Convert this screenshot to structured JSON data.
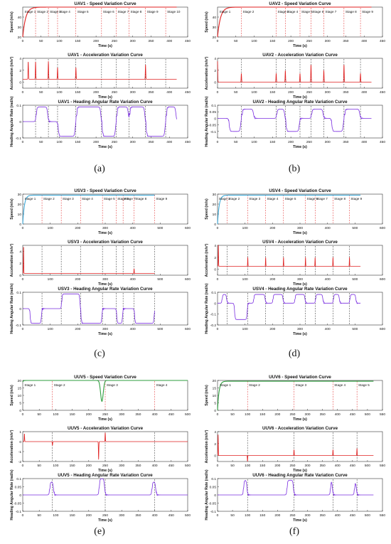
{
  "colors": {
    "uav": "#e02020",
    "usv": "#3fa9d8",
    "uuv": "#2e9e3e",
    "accel": "#e02020",
    "heading": "#7a2ee0",
    "stage_red": "#e02020",
    "stage_black": "#222222"
  },
  "chart_data": [
    {
      "id": "a",
      "type": "line",
      "caption": "(a)",
      "agent": "uav",
      "xlim": [
        0,
        450
      ],
      "xticks": [
        0,
        50,
        100,
        150,
        200,
        250,
        300,
        350,
        400,
        450
      ],
      "xlabel": "Time (s)",
      "end_t": 420,
      "stage_lines": [
        35,
        70,
        95,
        145,
        215,
        255,
        290,
        335,
        390
      ],
      "stage_labels": [
        {
          "t": 3,
          "text": "Stage 1"
        },
        {
          "t": 37,
          "text": "Stage 2"
        },
        {
          "t": 72,
          "text": "Stage 3"
        },
        {
          "t": 97,
          "text": "Stage 4"
        },
        {
          "t": 147,
          "text": "Stage 5"
        },
        {
          "t": 217,
          "text": "Stage 6"
        },
        {
          "t": 257,
          "text": "Stage 7"
        },
        {
          "t": 292,
          "text": "Stage 8"
        },
        {
          "t": 337,
          "text": "Stage 9"
        },
        {
          "t": 392,
          "text": "Stage 10"
        }
      ],
      "speed": {
        "title": "UAV1 - Speed Variation Curve",
        "ylabel": "Speed (m/s)",
        "ylim": [
          20,
          50
        ],
        "yticks": [
          20,
          30,
          40
        ],
        "v0": 20,
        "vmax": 50,
        "ramp": 8
      },
      "accel": {
        "title": "UAV1 - Acceleration Variation Curve",
        "ylabel": "Acceleration (m/s²)",
        "ylim": [
          -1,
          4
        ],
        "yticks": [
          0,
          2,
          4
        ],
        "base": 0.5,
        "spikes": [
          [
            15,
            3
          ],
          [
            35,
            3
          ],
          [
            70,
            3
          ],
          [
            95,
            2
          ],
          [
            145,
            2
          ],
          [
            335,
            2.5
          ]
        ]
      },
      "heading": {
        "title": "UAV1 - Heading Angular Rate Variation Curve",
        "ylabel": "Heading Angular Rate (rad/s)",
        "ylim": [
          -0.1,
          0.1
        ],
        "yticks": [
          -0.1,
          0,
          0.1
        ],
        "pulses": [
          [
            35,
            70,
            0.09
          ],
          [
            95,
            145,
            -0.09
          ],
          [
            145,
            215,
            0.09
          ],
          [
            215,
            255,
            -0.09
          ],
          [
            255,
            290,
            0.09
          ],
          [
            290,
            335,
            0.09
          ],
          [
            335,
            390,
            -0.09
          ],
          [
            390,
            420,
            0.09
          ]
        ]
      }
    },
    {
      "id": "b",
      "type": "line",
      "caption": "(b)",
      "agent": "uav",
      "xlim": [
        0,
        450
      ],
      "xticks": [
        0,
        50,
        100,
        150,
        200,
        250,
        300,
        350,
        400,
        450
      ],
      "xlabel": "Time (s)",
      "end_t": 420,
      "stage_lines": [
        65,
        160,
        185,
        225,
        255,
        290,
        345,
        390
      ],
      "stage_labels": [
        {
          "t": 3,
          "text": "Stage 1"
        },
        {
          "t": 67,
          "text": "Stage 2"
        },
        {
          "t": 162,
          "text": "Stage 3"
        },
        {
          "t": 187,
          "text": "Stage 4"
        },
        {
          "t": 227,
          "text": "Stage 5"
        },
        {
          "t": 257,
          "text": "Stage 6"
        },
        {
          "t": 292,
          "text": "Stage 7"
        },
        {
          "t": 347,
          "text": "Stage 8"
        },
        {
          "t": 392,
          "text": "Stage 9"
        }
      ],
      "speed": {
        "title": "UAV2 - Speed Variation Curve",
        "ylabel": "Speed (m/s)",
        "ylim": [
          20,
          50
        ],
        "yticks": [
          20,
          30,
          40
        ],
        "v0": 20,
        "vmax": 50,
        "ramp": 8
      },
      "accel": {
        "title": "UAV2 - Acceleration Variation Curve",
        "ylabel": "Acceleration (m/s²)",
        "ylim": [
          -1,
          4
        ],
        "yticks": [
          0,
          2,
          4
        ],
        "base": 0,
        "spikes": [
          [
            0,
            3.5
          ],
          [
            65,
            1.5
          ],
          [
            160,
            1.5
          ],
          [
            185,
            2
          ],
          [
            225,
            1.5
          ],
          [
            255,
            3
          ],
          [
            290,
            2
          ],
          [
            345,
            3
          ],
          [
            390,
            1.5
          ]
        ]
      },
      "heading": {
        "title": "UAV2 - Heading Angular Rate Variation Curve",
        "ylabel": "Heading Angular Rate (rad/s)",
        "ylim": [
          -0.15,
          0.1
        ],
        "yticks": [
          -0.1,
          -0.05,
          0,
          0.05,
          0.1
        ],
        "pulses": [
          [
            30,
            65,
            -0.1
          ],
          [
            65,
            100,
            0.07
          ],
          [
            160,
            185,
            0.07
          ],
          [
            185,
            225,
            -0.1
          ],
          [
            255,
            290,
            0.07
          ],
          [
            310,
            345,
            -0.1
          ],
          [
            345,
            390,
            0.07
          ]
        ]
      }
    },
    {
      "id": "c",
      "type": "line",
      "caption": "(c)",
      "agent": "usv",
      "xlim": [
        0,
        600
      ],
      "xticks": [
        0,
        100,
        200,
        300,
        400,
        500,
        600
      ],
      "xlabel": "Time (s)",
      "end_t": 480,
      "stage_lines": [
        70,
        140,
        210,
        290,
        340,
        365,
        405,
        480
      ],
      "stage_labels": [
        {
          "t": 4,
          "text": "Stage 1"
        },
        {
          "t": 72,
          "text": "Stage 2"
        },
        {
          "t": 142,
          "text": "Stage 3"
        },
        {
          "t": 212,
          "text": "Stage 4"
        },
        {
          "t": 292,
          "text": "Stage 5"
        },
        {
          "t": 342,
          "text": "Stage 6"
        },
        {
          "t": 367,
          "text": "Stage 7"
        },
        {
          "t": 407,
          "text": "Stage 8"
        },
        {
          "t": 482,
          "text": "Stage 9"
        }
      ],
      "speed": {
        "title": "USV3 - Speed Variation Curve",
        "ylabel": "Speed (m/s)",
        "ylim": [
          0,
          30
        ],
        "yticks": [
          0,
          10,
          20,
          30
        ],
        "v0": 0,
        "vmax": 29,
        "ramp": 6
      },
      "accel": {
        "title": "USV3 - Acceleration Variation Curve",
        "ylabel": "Acceleration (m/s²)",
        "ylim": [
          0,
          5
        ],
        "yticks": [
          0,
          2,
          4
        ],
        "base": 0.3,
        "spikes": [
          [
            3,
            4.6
          ],
          [
            405,
            0.8
          ]
        ]
      },
      "heading": {
        "title": "USV3 - Heading Angular Rate Variation Curve",
        "ylabel": "Heading Angular Rate (rad/s)",
        "ylim": [
          -0.1,
          0.1
        ],
        "yticks": [
          -0.1,
          0,
          0.1
        ],
        "pulses": [
          [
            25,
            70,
            -0.09
          ],
          [
            140,
            210,
            0.09
          ],
          [
            210,
            290,
            -0.09
          ],
          [
            340,
            365,
            -0.09
          ],
          [
            405,
            480,
            -0.09
          ]
        ]
      }
    },
    {
      "id": "d",
      "type": "line",
      "caption": "(d)",
      "agent": "usv",
      "xlim": [
        0,
        600
      ],
      "xticks": [
        0,
        100,
        200,
        300,
        400,
        500,
        600
      ],
      "xlabel": "Time (s)",
      "end_t": 520,
      "stage_lines": [
        35,
        110,
        175,
        240,
        320,
        355,
        420,
        480
      ],
      "stage_labels": [
        {
          "t": 2,
          "text": "Stage 1"
        },
        {
          "t": 37,
          "text": "Stage 2"
        },
        {
          "t": 112,
          "text": "Stage 3"
        },
        {
          "t": 177,
          "text": "Stage 4"
        },
        {
          "t": 242,
          "text": "Stage 5"
        },
        {
          "t": 322,
          "text": "Stage 6"
        },
        {
          "t": 357,
          "text": "Stage 7"
        },
        {
          "t": 422,
          "text": "Stage 8"
        },
        {
          "t": 482,
          "text": "Stage 9"
        }
      ],
      "speed": {
        "title": "USV4 - Speed Variation Curve",
        "ylabel": "Speed (m/s)",
        "ylim": [
          0,
          30
        ],
        "yticks": [
          0,
          10,
          20,
          30
        ],
        "v0": 0,
        "vmax": 29,
        "ramp": 6
      },
      "accel": {
        "title": "USV4 - Acceleration Variation Curve",
        "ylabel": "Acceleration (m/s²)",
        "ylim": [
          -1,
          4
        ],
        "yticks": [
          0,
          2,
          4
        ],
        "base": 0.5,
        "spikes": [
          [
            3,
            3.8
          ],
          [
            110,
            1.5
          ],
          [
            175,
            1.5
          ],
          [
            240,
            1.5
          ],
          [
            320,
            1.5
          ],
          [
            355,
            1.5
          ],
          [
            420,
            1.5
          ],
          [
            480,
            1.5
          ]
        ]
      },
      "heading": {
        "title": "USV4 - Heading Angular Rate Variation Curve",
        "ylabel": "Heading Angular Rate (rad/s)",
        "ylim": [
          -0.2,
          0.1
        ],
        "yticks": [
          -0.2,
          -0.1,
          0,
          0.1
        ],
        "pulses": [
          [
            15,
            35,
            0.08
          ],
          [
            60,
            110,
            -0.15
          ],
          [
            130,
            175,
            0.08
          ],
          [
            200,
            240,
            0.08
          ],
          [
            280,
            320,
            0.08
          ],
          [
            355,
            385,
            0.08
          ],
          [
            420,
            445,
            0.08
          ],
          [
            480,
            505,
            0.08
          ]
        ]
      }
    },
    {
      "id": "e",
      "type": "line",
      "caption": "(e)",
      "agent": "uuv",
      "xlim": [
        0,
        500
      ],
      "xticks": [
        0,
        50,
        100,
        150,
        200,
        250,
        300,
        350,
        400,
        450,
        500
      ],
      "xlabel": "Time (s)",
      "end_t": 500,
      "stage_lines": [
        90,
        250,
        400
      ],
      "stage_labels": [
        {
          "t": 3,
          "text": "Stage 1"
        },
        {
          "t": 92,
          "text": "Stage 2"
        },
        {
          "t": 252,
          "text": "Stage 3"
        },
        {
          "t": 402,
          "text": "Stage 4"
        }
      ],
      "speed": {
        "title": "UUV5 - Speed Variation Curve",
        "ylabel": "Speed (m/s)",
        "ylim": [
          0,
          20
        ],
        "yticks": [
          0,
          5,
          10,
          15,
          20
        ],
        "v0": 19,
        "vmax": 20,
        "ramp": 2,
        "dip": [
          240,
          4,
          14
        ]
      },
      "accel": {
        "title": "UUV5 - Acceleration Variation Curve",
        "ylabel": "Acceleration (m/s²)",
        "ylim": [
          -2,
          1
        ],
        "yticks": [
          -2,
          -1,
          0,
          1
        ],
        "base": 0,
        "spikes": [
          [
            5,
            0.8
          ],
          [
            90,
            -0.4
          ],
          [
            230,
            -1.8
          ],
          [
            250,
            0.9
          ]
        ]
      },
      "heading": {
        "title": "UUV5 - Heading Angular Rate Variation Curve",
        "ylabel": "Heading Angular Rate (rad/s)",
        "ylim": [
          -0.1,
          0.1
        ],
        "yticks": [
          -0.1,
          -0.05,
          0,
          0.05,
          0.1
        ],
        "pulses": [
          [
            80,
            95,
            0.08
          ],
          [
            230,
            250,
            0.1
          ],
          [
            390,
            405,
            0.08
          ]
        ]
      }
    },
    {
      "id": "f",
      "type": "line",
      "caption": "(f)",
      "agent": "uuv",
      "xlim": [
        0,
        550
      ],
      "xticks": [
        0,
        50,
        100,
        150,
        200,
        250,
        300,
        350,
        400,
        450,
        500,
        550
      ],
      "xlabel": "Time (s)",
      "end_t": 520,
      "stage_lines": [
        100,
        255,
        385,
        465
      ],
      "stage_labels": [
        {
          "t": 5,
          "text": "Stage 1"
        },
        {
          "t": 102,
          "text": "Stage 2"
        },
        {
          "t": 257,
          "text": "Stage 3"
        },
        {
          "t": 387,
          "text": "Stage 4"
        },
        {
          "t": 467,
          "text": "Stage 5"
        }
      ],
      "speed": {
        "title": "UUV6 - Speed Variation Curve",
        "ylabel": "Speed (m/s)",
        "ylim": [
          0,
          20
        ],
        "yticks": [
          0,
          5,
          10,
          15,
          20
        ],
        "v0": 0,
        "vmax": 19.5,
        "ramp": 5
      },
      "accel": {
        "title": "UUV6 - Acceleration Variation Curve",
        "ylabel": "Acceleration (m/s²)",
        "ylim": [
          -1,
          4
        ],
        "yticks": [
          0,
          2,
          4
        ],
        "base": 0,
        "spikes": [
          [
            2,
            3.5
          ],
          [
            100,
            -1
          ],
          [
            255,
            1
          ],
          [
            385,
            1
          ],
          [
            465,
            1.2
          ]
        ]
      },
      "heading": {
        "title": "UUV6 - Heading Angular Rate Variation Curve",
        "ylabel": "Heading Angular Rate (rad/s)",
        "ylim": [
          -0.1,
          0.1
        ],
        "yticks": [
          -0.1,
          -0.05,
          0,
          0.05,
          0.1
        ],
        "pulses": [
          [
            85,
            100,
            0.09
          ],
          [
            230,
            255,
            0.09
          ],
          [
            375,
            385,
            0.09
          ],
          [
            455,
            465,
            0.08
          ]
        ]
      }
    }
  ]
}
